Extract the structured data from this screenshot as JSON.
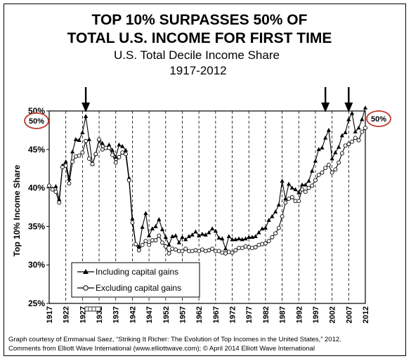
{
  "title_line1": "TOP 10% SURPASSES 50% OF",
  "title_line2": "TOTAL U.S. INCOME FOR FIRST TIME",
  "subtitle_line1": "U.S. Total Decile Income Share",
  "subtitle_line2": "1917-2012",
  "callout_left": "50%",
  "callout_right": "50%",
  "credit_line1": "Graph courtesy of Emmanual Saez, “Striking It Richer: The Evolution of Top Incomes in the United States,” 2012.",
  "credit_line2": "Comments from Elliott Wave International (www.elliottwave.com); © April 2014 Elliott Wave International",
  "colors": {
    "series": "#000000",
    "callout_ring": "#c0392b",
    "background": "#ffffff"
  },
  "chart_data": {
    "type": "line",
    "ylabel": "Top 10% Income Share",
    "xlabel": "",
    "xlim": [
      1917,
      2012
    ],
    "ylim": [
      25,
      50
    ],
    "grid": "vertical dashed lines at each x tick",
    "legend_placement": "bottom-left",
    "x_ticks": [
      "1917",
      "1922",
      "1927",
      "1932",
      "1937",
      "1942",
      "1947",
      "1952",
      "1957",
      "1962",
      "1967",
      "1972",
      "1977",
      "1982",
      "1987",
      "1992",
      "1997",
      "2002",
      "2007",
      "2012"
    ],
    "y_ticks": [
      "25%",
      "30%",
      "35%",
      "40%",
      "45%",
      "50%"
    ],
    "arrows_at": [
      1928,
      2000,
      2007
    ],
    "years": [
      1917,
      1918,
      1919,
      1920,
      1921,
      1922,
      1923,
      1924,
      1925,
      1926,
      1927,
      1928,
      1929,
      1930,
      1931,
      1932,
      1933,
      1934,
      1935,
      1936,
      1937,
      1938,
      1939,
      1940,
      1941,
      1942,
      1943,
      1944,
      1945,
      1946,
      1947,
      1948,
      1949,
      1950,
      1951,
      1952,
      1953,
      1954,
      1955,
      1956,
      1957,
      1958,
      1959,
      1960,
      1961,
      1962,
      1963,
      1964,
      1965,
      1966,
      1967,
      1968,
      1969,
      1970,
      1971,
      1972,
      1973,
      1974,
      1975,
      1976,
      1977,
      1978,
      1979,
      1980,
      1981,
      1982,
      1983,
      1984,
      1985,
      1986,
      1987,
      1988,
      1989,
      1990,
      1991,
      1992,
      1993,
      1994,
      1995,
      1996,
      1997,
      1998,
      1999,
      2000,
      2001,
      2002,
      2003,
      2004,
      2005,
      2006,
      2007,
      2008,
      2009,
      2010,
      2011,
      2012
    ],
    "series": [
      {
        "name": "Including capital gains",
        "marker": "filled-triangle",
        "values": [
          40.3,
          39.9,
          40.2,
          38.5,
          42.9,
          43.4,
          41.2,
          44.7,
          46.3,
          46.2,
          47.2,
          49.3,
          46.3,
          43.1,
          44.4,
          46.3,
          45.8,
          45.2,
          45.6,
          44.9,
          44.0,
          45.6,
          45.4,
          44.9,
          41.3,
          36.0,
          32.7,
          32.4,
          34.9,
          36.7,
          33.8,
          34.7,
          35.0,
          35.9,
          34.6,
          33.6,
          32.6,
          33.7,
          33.8,
          32.9,
          33.6,
          33.3,
          33.7,
          33.9,
          34.3,
          33.8,
          34.0,
          33.9,
          34.2,
          34.7,
          34.4,
          33.5,
          33.4,
          32.1,
          33.7,
          33.3,
          33.3,
          33.4,
          33.3,
          33.4,
          33.6,
          33.6,
          33.7,
          34.2,
          34.7,
          34.8,
          35.8,
          36.3,
          36.9,
          37.8,
          40.9,
          38.6,
          40.5,
          40.0,
          39.8,
          39.4,
          40.4,
          40.4,
          40.9,
          42.2,
          43.5,
          45.0,
          45.2,
          46.5,
          47.5,
          43.8,
          44.6,
          45.3,
          46.8,
          47.2,
          48.9,
          49.7,
          47.3,
          47.8,
          48.9,
          50.4
        ]
      },
      {
        "name": "Excluding capital gains",
        "marker": "open-circle",
        "values": [
          40.3,
          39.8,
          39.5,
          38.1,
          42.7,
          42.9,
          40.6,
          43.4,
          44.1,
          44.2,
          44.6,
          46.1,
          43.8,
          43.1,
          44.4,
          46.3,
          45.0,
          45.2,
          45.2,
          44.3,
          43.3,
          44.0,
          44.6,
          44.4,
          41.0,
          35.5,
          32.7,
          31.9,
          32.6,
          33.1,
          32.6,
          33.2,
          33.2,
          33.8,
          32.9,
          32.4,
          31.5,
          32.1,
          32.0,
          31.8,
          31.8,
          32.1,
          31.8,
          31.8,
          31.9,
          31.8,
          32.0,
          31.8,
          31.9,
          32.1,
          31.8,
          31.8,
          31.6,
          31.5,
          31.7,
          31.6,
          31.9,
          32.2,
          32.2,
          32.4,
          32.3,
          32.2,
          32.3,
          32.6,
          32.7,
          32.8,
          33.1,
          33.6,
          34.1,
          34.8,
          36.3,
          38.1,
          38.6,
          38.8,
          38.3,
          38.3,
          39.8,
          39.5,
          40.0,
          40.3,
          41.0,
          41.7,
          42.0,
          42.6,
          43.0,
          42.0,
          42.4,
          43.3,
          44.5,
          45.5,
          45.7,
          46.0,
          46.5,
          46.2,
          47.3,
          47.8
        ]
      }
    ]
  },
  "legend": {
    "label_including": "Including capital gains",
    "label_excluding": "Excluding capital gains"
  }
}
